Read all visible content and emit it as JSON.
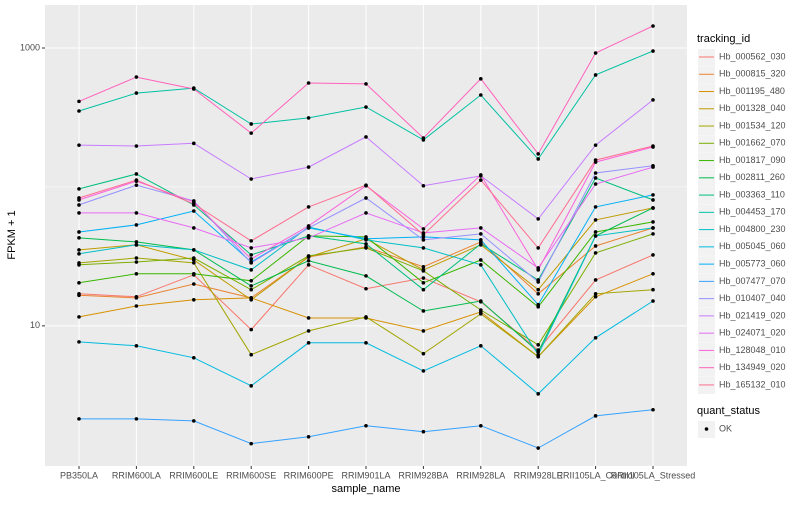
{
  "chart_data": {
    "type": "line",
    "x_label": "sample_name",
    "y_label": "FPKM + 1",
    "log_y": true,
    "grid": true,
    "categories": [
      "PB350LA",
      "RRIM600LA",
      "RRIM600LE",
      "RRIM600SE",
      "RRIM600PE",
      "RRIM901LA",
      "RRIM928BA",
      "RRIM928LA",
      "RRIM928LE",
      "RRII105LA_Control",
      "RRII105LA_Stressed"
    ],
    "ylim": [
      0.98,
      2040
    ],
    "yticks": [
      10,
      1000
    ],
    "minor_yticks": [
      100
    ],
    "legend_title": "tracking_id",
    "point_legend_title": "quant_status",
    "point_legend": [
      "OK"
    ],
    "point_color": "#000000",
    "series": [
      {
        "name": "Hb_000562_030",
        "color": "#F8766D",
        "values": [
          17.0,
          16.2,
          23.3,
          9.4,
          27.5,
          18.5,
          22.1,
          14.9,
          6.7,
          21.4,
          32.4
        ]
      },
      {
        "name": "Hb_000815_320",
        "color": "#EA8331",
        "values": [
          16.6,
          15.9,
          20.0,
          15.9,
          31.3,
          37.0,
          26.6,
          40.2,
          17.0,
          37.6,
          50.7
        ]
      },
      {
        "name": "Hb_001195_480",
        "color": "#D89000",
        "values": [
          11.6,
          13.9,
          15.4,
          15.9,
          11.4,
          11.4,
          9.2,
          12.6,
          6.0,
          16.2,
          23.7
        ]
      },
      {
        "name": "Hb_001328_040",
        "color": "#C09B00",
        "values": [
          35.2,
          38.3,
          29.8,
          15.4,
          31.3,
          42.3,
          25.3,
          38.3,
          18.2,
          57.9,
          70.6
        ]
      },
      {
        "name": "Hb_001534_120",
        "color": "#A3A500",
        "values": [
          28.4,
          30.8,
          28.4,
          6.2,
          9.2,
          11.6,
          6.3,
          12.2,
          6.0,
          17.0,
          18.2
        ]
      },
      {
        "name": "Hb_001662_070",
        "color": "#7CAE00",
        "values": [
          27.5,
          28.8,
          30.8,
          18.2,
          31.9,
          36.4,
          24.9,
          13.0,
          7.3,
          33.5,
          45.9
        ]
      },
      {
        "name": "Hb_001817_090",
        "color": "#39B600",
        "values": [
          20.4,
          23.7,
          23.7,
          21.1,
          44.4,
          43.7,
          20.4,
          29.8,
          13.7,
          47.4,
          56.0
        ]
      },
      {
        "name": "Hb_002811_260",
        "color": "#00BB4E",
        "values": [
          43.0,
          40.2,
          35.2,
          19.4,
          29.4,
          22.9,
          12.8,
          15.1,
          6.5,
          44.4,
          70.6
        ]
      },
      {
        "name": "Hb_003363_110",
        "color": "#00BF7D",
        "values": [
          96.8,
          124,
          74.2,
          32.4,
          44.4,
          38.9,
          18.2,
          38.9,
          21.4,
          116,
          80.6
        ]
      },
      {
        "name": "Hb_004453_170",
        "color": "#00C1A3",
        "values": [
          352,
          474,
          515,
          284,
          314,
          376,
          218,
          459,
          159,
          640,
          951
        ]
      },
      {
        "name": "Hb_004800_230",
        "color": "#00BFC4",
        "values": [
          33.0,
          38.3,
          35.2,
          25.3,
          51.5,
          41.6,
          36.4,
          27.5,
          6.2,
          44.4,
          50.7
        ]
      },
      {
        "name": "Hb_005045_060",
        "color": "#00BAE0",
        "values": [
          7.67,
          7.18,
          5.89,
          3.7,
          7.55,
          7.55,
          4.74,
          7.18,
          3.24,
          8.2,
          15.1
        ]
      },
      {
        "name": "Hb_005773_060",
        "color": "#00B0F6",
        "values": [
          47.4,
          53.3,
          67.1,
          28.8,
          50.7,
          42.3,
          43.7,
          41.6,
          14.2,
          71.8,
          87.6
        ]
      },
      {
        "name": "Hb_007477_070",
        "color": "#35A2FF",
        "values": [
          2.14,
          2.14,
          2.07,
          1.42,
          1.59,
          1.91,
          1.73,
          1.91,
          1.32,
          2.25,
          2.49
        ]
      },
      {
        "name": "Hb_010407_040",
        "color": "#9590FF",
        "values": [
          74.2,
          103,
          79.3,
          28.4,
          50.7,
          83.3,
          41.6,
          45.9,
          20.7,
          126,
          142
        ]
      },
      {
        "name": "Hb_021419_020",
        "color": "#C77CFF",
        "values": [
          200,
          197,
          206,
          114,
          139,
          229,
          102,
          120,
          58.9,
          200,
          423
        ]
      },
      {
        "name": "Hb_024071_020",
        "color": "#E76BF3",
        "values": [
          65.0,
          65.0,
          50.7,
          36.4,
          43.0,
          65.0,
          46.7,
          50.7,
          26.1,
          105,
          139
        ]
      },
      {
        "name": "Hb_128048_010",
        "color": "#FA62DB",
        "values": [
          80.6,
          110,
          78.0,
          30.3,
          52.4,
          102,
          49.9,
          122,
          25.3,
          151,
          194
        ]
      },
      {
        "name": "Hb_134949_020",
        "color": "#FF62BC",
        "values": [
          413,
          618,
          507,
          244,
          560,
          552,
          225,
          600,
          173,
          920,
          1440
        ]
      },
      {
        "name": "Hb_165132_010",
        "color": "#FF6C90",
        "values": [
          83.3,
          112,
          75.5,
          40.9,
          71.8,
          103,
          45.2,
          112,
          36.4,
          156,
          197
        ]
      }
    ]
  }
}
